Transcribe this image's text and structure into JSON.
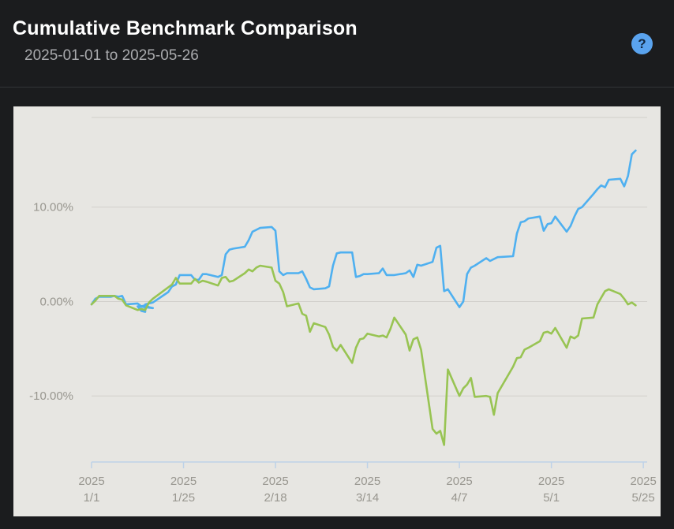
{
  "header": {
    "title": "Cumulative Benchmark Comparison",
    "date_range": "2025-01-01 to 2025-05-26",
    "help_icon": "question-mark-icon",
    "help_label": "?"
  },
  "colors": {
    "page_background": "#1b1c1e",
    "chart_background": "#e7e6e2",
    "series_blue": "#4fb0f0",
    "series_green": "#98c453",
    "help_button": "#5aa3ee"
  },
  "chart_data": {
    "type": "line",
    "title": "",
    "xlabel": "",
    "ylabel": "",
    "x_range": [
      "2025-01-01",
      "2025-05-26"
    ],
    "ylim": [
      -17,
      19.5
    ],
    "y_unit": "%",
    "grid": true,
    "legend": "none",
    "y_ticks": [
      {
        "value": 10,
        "label": "10.00%"
      },
      {
        "value": 0,
        "label": "0.00%"
      },
      {
        "value": -10,
        "label": "-10.00%"
      }
    ],
    "x_ticks": [
      {
        "date": "2025-01-01",
        "year": "2025",
        "label": "1/1"
      },
      {
        "date": "2025-01-25",
        "year": "2025",
        "label": "1/25"
      },
      {
        "date": "2025-02-18",
        "year": "2025",
        "label": "2/18"
      },
      {
        "date": "2025-03-14",
        "year": "2025",
        "label": "3/14"
      },
      {
        "date": "2025-04-07",
        "year": "2025",
        "label": "4/7"
      },
      {
        "date": "2025-05-01",
        "year": "2025",
        "label": "5/1"
      },
      {
        "date": "2025-05-25",
        "year": "2025",
        "label": "5/25"
      }
    ],
    "series": [
      {
        "color": "#4fb0f0",
        "points": [
          [
            "2025-01-01",
            -0.3
          ],
          [
            "2025-01-02",
            0.3
          ],
          [
            "2025-01-03",
            0.5
          ],
          [
            "2025-01-06",
            0.5
          ],
          [
            "2025-01-07",
            0.6
          ],
          [
            "2025-01-08",
            0.5
          ],
          [
            "2025-01-09",
            0.6
          ],
          [
            "2025-01-10",
            -0.3
          ],
          [
            "2025-01-13",
            -0.2
          ],
          [
            "2025-01-14",
            -0.5
          ],
          [
            "2025-01-15",
            -0.4
          ],
          [
            "2025-01-16",
            -0.6
          ],
          [
            "2025-01-17",
            -0.7
          ],
          [
            "2025-01-13",
            -0.5
          ],
          [
            "2025-01-14",
            -1.0
          ],
          [
            "2025-01-15",
            -1.1
          ],
          [
            "2025-01-15",
            -0.3
          ],
          [
            "2025-01-16",
            -0.2
          ],
          [
            "2025-01-17",
            -0.1
          ],
          [
            "2025-01-21",
            1.0
          ],
          [
            "2025-01-22",
            1.6
          ],
          [
            "2025-01-23",
            1.8
          ],
          [
            "2025-01-24",
            2.8
          ],
          [
            "2025-01-27",
            2.8
          ],
          [
            "2025-01-28",
            2.3
          ],
          [
            "2025-01-29",
            2.3
          ],
          [
            "2025-01-30",
            2.9
          ],
          [
            "2025-01-31",
            2.9
          ],
          [
            "2025-02-03",
            2.6
          ],
          [
            "2025-02-04",
            2.8
          ],
          [
            "2025-02-05",
            5.0
          ],
          [
            "2025-02-06",
            5.5
          ],
          [
            "2025-02-07",
            5.6
          ],
          [
            "2025-02-10",
            5.8
          ],
          [
            "2025-02-11",
            6.5
          ],
          [
            "2025-02-12",
            7.4
          ],
          [
            "2025-02-13",
            7.6
          ],
          [
            "2025-02-14",
            7.8
          ],
          [
            "2025-02-17",
            7.9
          ],
          [
            "2025-02-18",
            7.5
          ],
          [
            "2025-02-19",
            3.2
          ],
          [
            "2025-02-20",
            2.8
          ],
          [
            "2025-02-21",
            3.0
          ],
          [
            "2025-02-24",
            3.0
          ],
          [
            "2025-02-25",
            3.2
          ],
          [
            "2025-02-26",
            2.4
          ],
          [
            "2025-02-27",
            1.5
          ],
          [
            "2025-02-28",
            1.3
          ],
          [
            "2025-03-03",
            1.4
          ],
          [
            "2025-03-04",
            1.6
          ],
          [
            "2025-03-05",
            3.8
          ],
          [
            "2025-03-06",
            5.1
          ],
          [
            "2025-03-07",
            5.2
          ],
          [
            "2025-03-10",
            5.2
          ],
          [
            "2025-03-11",
            2.6
          ],
          [
            "2025-03-12",
            2.7
          ],
          [
            "2025-03-13",
            2.9
          ],
          [
            "2025-03-14",
            2.9
          ],
          [
            "2025-03-17",
            3.0
          ],
          [
            "2025-03-18",
            3.5
          ],
          [
            "2025-03-19",
            2.8
          ],
          [
            "2025-03-20",
            2.8
          ],
          [
            "2025-03-21",
            2.8
          ],
          [
            "2025-03-24",
            3.0
          ],
          [
            "2025-03-25",
            3.3
          ],
          [
            "2025-03-26",
            2.6
          ],
          [
            "2025-03-27",
            3.9
          ],
          [
            "2025-03-28",
            3.8
          ],
          [
            "2025-03-31",
            4.2
          ],
          [
            "2025-04-01",
            5.7
          ],
          [
            "2025-04-02",
            5.9
          ],
          [
            "2025-04-03",
            1.1
          ],
          [
            "2025-04-04",
            1.3
          ],
          [
            "2025-04-07",
            -0.6
          ],
          [
            "2025-04-08",
            0.0
          ],
          [
            "2025-04-09",
            2.9
          ],
          [
            "2025-04-10",
            3.6
          ],
          [
            "2025-04-11",
            3.8
          ],
          [
            "2025-04-14",
            4.6
          ],
          [
            "2025-04-15",
            4.3
          ],
          [
            "2025-04-16",
            4.5
          ],
          [
            "2025-04-17",
            4.7
          ],
          [
            "2025-04-21",
            4.8
          ],
          [
            "2025-04-22",
            7.2
          ],
          [
            "2025-04-23",
            8.4
          ],
          [
            "2025-04-24",
            8.5
          ],
          [
            "2025-04-25",
            8.8
          ],
          [
            "2025-04-28",
            9.0
          ],
          [
            "2025-04-29",
            7.5
          ],
          [
            "2025-04-30",
            8.2
          ],
          [
            "2025-05-01",
            8.3
          ],
          [
            "2025-05-02",
            9.0
          ],
          [
            "2025-05-05",
            7.4
          ],
          [
            "2025-05-06",
            8.0
          ],
          [
            "2025-05-07",
            9.0
          ],
          [
            "2025-05-08",
            9.8
          ],
          [
            "2025-05-09",
            10.0
          ],
          [
            "2025-05-12",
            11.4
          ],
          [
            "2025-05-13",
            11.9
          ],
          [
            "2025-05-14",
            12.3
          ],
          [
            "2025-05-15",
            12.1
          ],
          [
            "2025-05-16",
            12.9
          ],
          [
            "2025-05-19",
            13.0
          ],
          [
            "2025-05-20",
            12.2
          ],
          [
            "2025-05-21",
            13.3
          ],
          [
            "2025-05-22",
            15.6
          ],
          [
            "2025-05-23",
            16.0
          ]
        ]
      },
      {
        "color": "#98c453",
        "points": [
          [
            "2025-01-01",
            -0.3
          ],
          [
            "2025-01-02",
            0.1
          ],
          [
            "2025-01-03",
            0.6
          ],
          [
            "2025-01-06",
            0.6
          ],
          [
            "2025-01-07",
            0.6
          ],
          [
            "2025-01-08",
            0.3
          ],
          [
            "2025-01-09",
            0.2
          ],
          [
            "2025-01-10",
            -0.4
          ],
          [
            "2025-01-13",
            -0.9
          ],
          [
            "2025-01-14",
            -0.8
          ],
          [
            "2025-01-15",
            -0.9
          ],
          [
            "2025-01-16",
            -0.1
          ],
          [
            "2025-01-17",
            0.3
          ],
          [
            "2025-01-21",
            1.5
          ],
          [
            "2025-01-22",
            1.8
          ],
          [
            "2025-01-23",
            2.5
          ],
          [
            "2025-01-24",
            1.9
          ],
          [
            "2025-01-27",
            1.9
          ],
          [
            "2025-01-28",
            2.4
          ],
          [
            "2025-01-29",
            2.0
          ],
          [
            "2025-01-30",
            2.2
          ],
          [
            "2025-01-31",
            2.1
          ],
          [
            "2025-02-03",
            1.7
          ],
          [
            "2025-02-04",
            2.5
          ],
          [
            "2025-02-05",
            2.6
          ],
          [
            "2025-02-06",
            2.1
          ],
          [
            "2025-02-07",
            2.2
          ],
          [
            "2025-02-10",
            3.0
          ],
          [
            "2025-02-11",
            3.4
          ],
          [
            "2025-02-12",
            3.2
          ],
          [
            "2025-02-13",
            3.6
          ],
          [
            "2025-02-14",
            3.8
          ],
          [
            "2025-02-17",
            3.6
          ],
          [
            "2025-02-18",
            2.2
          ],
          [
            "2025-02-19",
            1.9
          ],
          [
            "2025-02-20",
            1.0
          ],
          [
            "2025-02-21",
            -0.5
          ],
          [
            "2025-02-24",
            -0.2
          ],
          [
            "2025-02-25",
            -1.3
          ],
          [
            "2025-02-26",
            -1.5
          ],
          [
            "2025-02-27",
            -3.2
          ],
          [
            "2025-02-28",
            -2.3
          ],
          [
            "2025-03-03",
            -2.7
          ],
          [
            "2025-03-04",
            -3.5
          ],
          [
            "2025-03-05",
            -4.8
          ],
          [
            "2025-03-06",
            -5.2
          ],
          [
            "2025-03-07",
            -4.6
          ],
          [
            "2025-03-10",
            -6.5
          ],
          [
            "2025-03-11",
            -4.9
          ],
          [
            "2025-03-12",
            -4.0
          ],
          [
            "2025-03-13",
            -3.9
          ],
          [
            "2025-03-14",
            -3.4
          ],
          [
            "2025-03-17",
            -3.7
          ],
          [
            "2025-03-18",
            -3.6
          ],
          [
            "2025-03-19",
            -3.8
          ],
          [
            "2025-03-20",
            -2.9
          ],
          [
            "2025-03-21",
            -1.7
          ],
          [
            "2025-03-24",
            -3.5
          ],
          [
            "2025-03-25",
            -5.2
          ],
          [
            "2025-03-26",
            -4.0
          ],
          [
            "2025-03-27",
            -3.8
          ],
          [
            "2025-03-28",
            -5.1
          ],
          [
            "2025-03-31",
            -13.5
          ],
          [
            "2025-04-01",
            -14.0
          ],
          [
            "2025-04-02",
            -13.7
          ],
          [
            "2025-04-03",
            -15.2
          ],
          [
            "2025-04-04",
            -7.2
          ],
          [
            "2025-04-07",
            -10.0
          ],
          [
            "2025-04-08",
            -9.2
          ],
          [
            "2025-04-09",
            -8.8
          ],
          [
            "2025-04-10",
            -8.1
          ],
          [
            "2025-04-11",
            -10.1
          ],
          [
            "2025-04-14",
            -10.0
          ],
          [
            "2025-04-15",
            -10.1
          ],
          [
            "2025-04-16",
            -12.0
          ],
          [
            "2025-04-17",
            -9.7
          ],
          [
            "2025-04-21",
            -6.9
          ],
          [
            "2025-04-22",
            -6.0
          ],
          [
            "2025-04-23",
            -5.9
          ],
          [
            "2025-04-24",
            -5.1
          ],
          [
            "2025-04-25",
            -4.9
          ],
          [
            "2025-04-28",
            -4.2
          ],
          [
            "2025-04-29",
            -3.3
          ],
          [
            "2025-04-30",
            -3.2
          ],
          [
            "2025-05-01",
            -3.4
          ],
          [
            "2025-05-02",
            -2.8
          ],
          [
            "2025-05-05",
            -4.9
          ],
          [
            "2025-05-06",
            -3.7
          ],
          [
            "2025-05-07",
            -3.9
          ],
          [
            "2025-05-08",
            -3.6
          ],
          [
            "2025-05-09",
            -1.8
          ],
          [
            "2025-05-12",
            -1.7
          ],
          [
            "2025-05-13",
            -0.3
          ],
          [
            "2025-05-14",
            0.4
          ],
          [
            "2025-05-15",
            1.1
          ],
          [
            "2025-05-16",
            1.3
          ],
          [
            "2025-05-19",
            0.8
          ],
          [
            "2025-05-20",
            0.3
          ],
          [
            "2025-05-21",
            -0.3
          ],
          [
            "2025-05-22",
            -0.1
          ],
          [
            "2025-05-23",
            -0.4
          ]
        ]
      }
    ]
  }
}
